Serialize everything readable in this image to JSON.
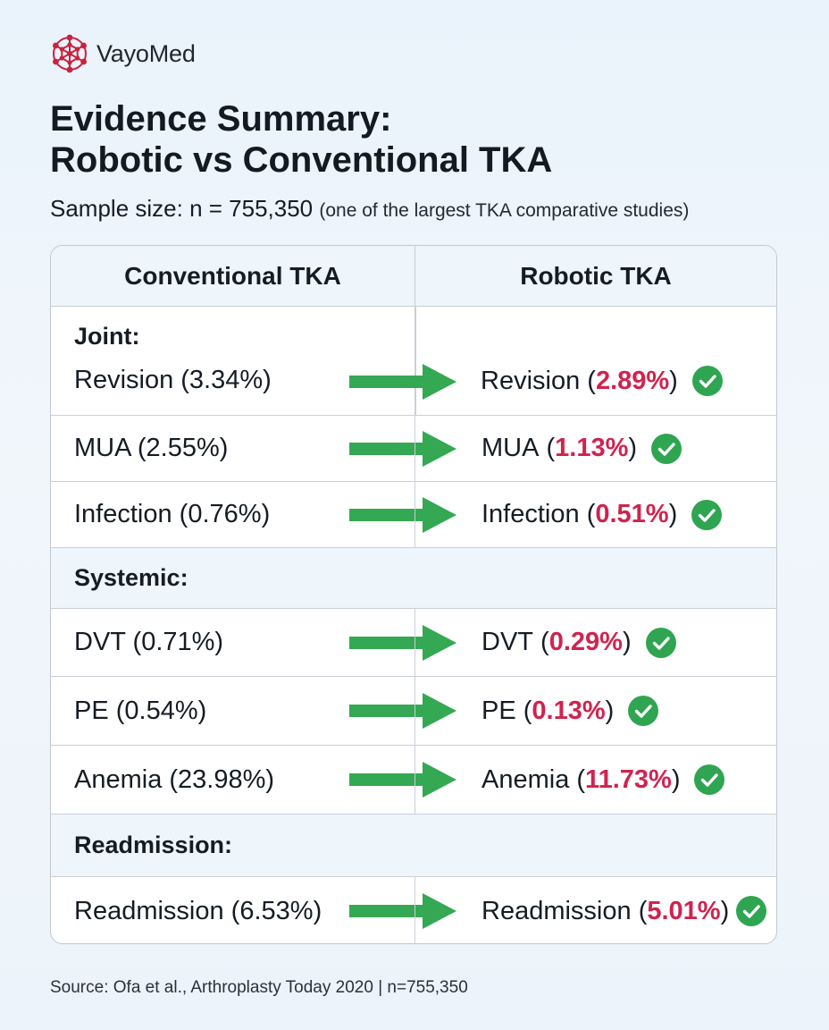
{
  "brand": {
    "name": "VayoMed"
  },
  "title": {
    "line1": "Evidence Summary:",
    "line2": "Robotic vs Conventional TKA"
  },
  "sample": {
    "label": "Sample size: n = 755,350",
    "note": "(one of the largest TKA comparative studies)"
  },
  "table": {
    "headers": {
      "left": "Conventional TKA",
      "right": "Robotic TKA"
    },
    "sections": {
      "joint": "Joint:",
      "systemic": "Systemic:",
      "readmission": "Readmission:"
    },
    "rows": {
      "revision": {
        "conventional": "Revision (3.34%)",
        "robotic_label": "Revision",
        "robotic_value": "2.89%"
      },
      "mua": {
        "conventional": "MUA (2.55%)",
        "robotic_label": "MUA",
        "robotic_value": "1.13%"
      },
      "infection": {
        "conventional": "Infection (0.76%)",
        "robotic_label": "Infection",
        "robotic_value": "0.51%"
      },
      "dvt": {
        "conventional": "DVT (0.71%)",
        "robotic_label": "DVT",
        "robotic_value": "0.29%"
      },
      "pe": {
        "conventional": "PE (0.54%)",
        "robotic_label": "PE",
        "robotic_value": "0.13%"
      },
      "anemia": {
        "conventional": "Anemia (23.98%)",
        "robotic_label": "Anemia",
        "robotic_value": "11.73%"
      },
      "readmission": {
        "conventional": "Readmission (6.53%)",
        "robotic_label": "Readmission",
        "robotic_value": "5.01%"
      }
    }
  },
  "source": "Source: Ofa et al., Arthroplasty Today 2020 | n=755,350",
  "colors": {
    "accent_red": "#d0234f",
    "arrow_green": "#34a853",
    "check_green": "#2fa552"
  },
  "icons": {
    "logo": "molecule-logo-icon",
    "arrow": "right-arrow-icon",
    "check": "check-circle-icon"
  }
}
